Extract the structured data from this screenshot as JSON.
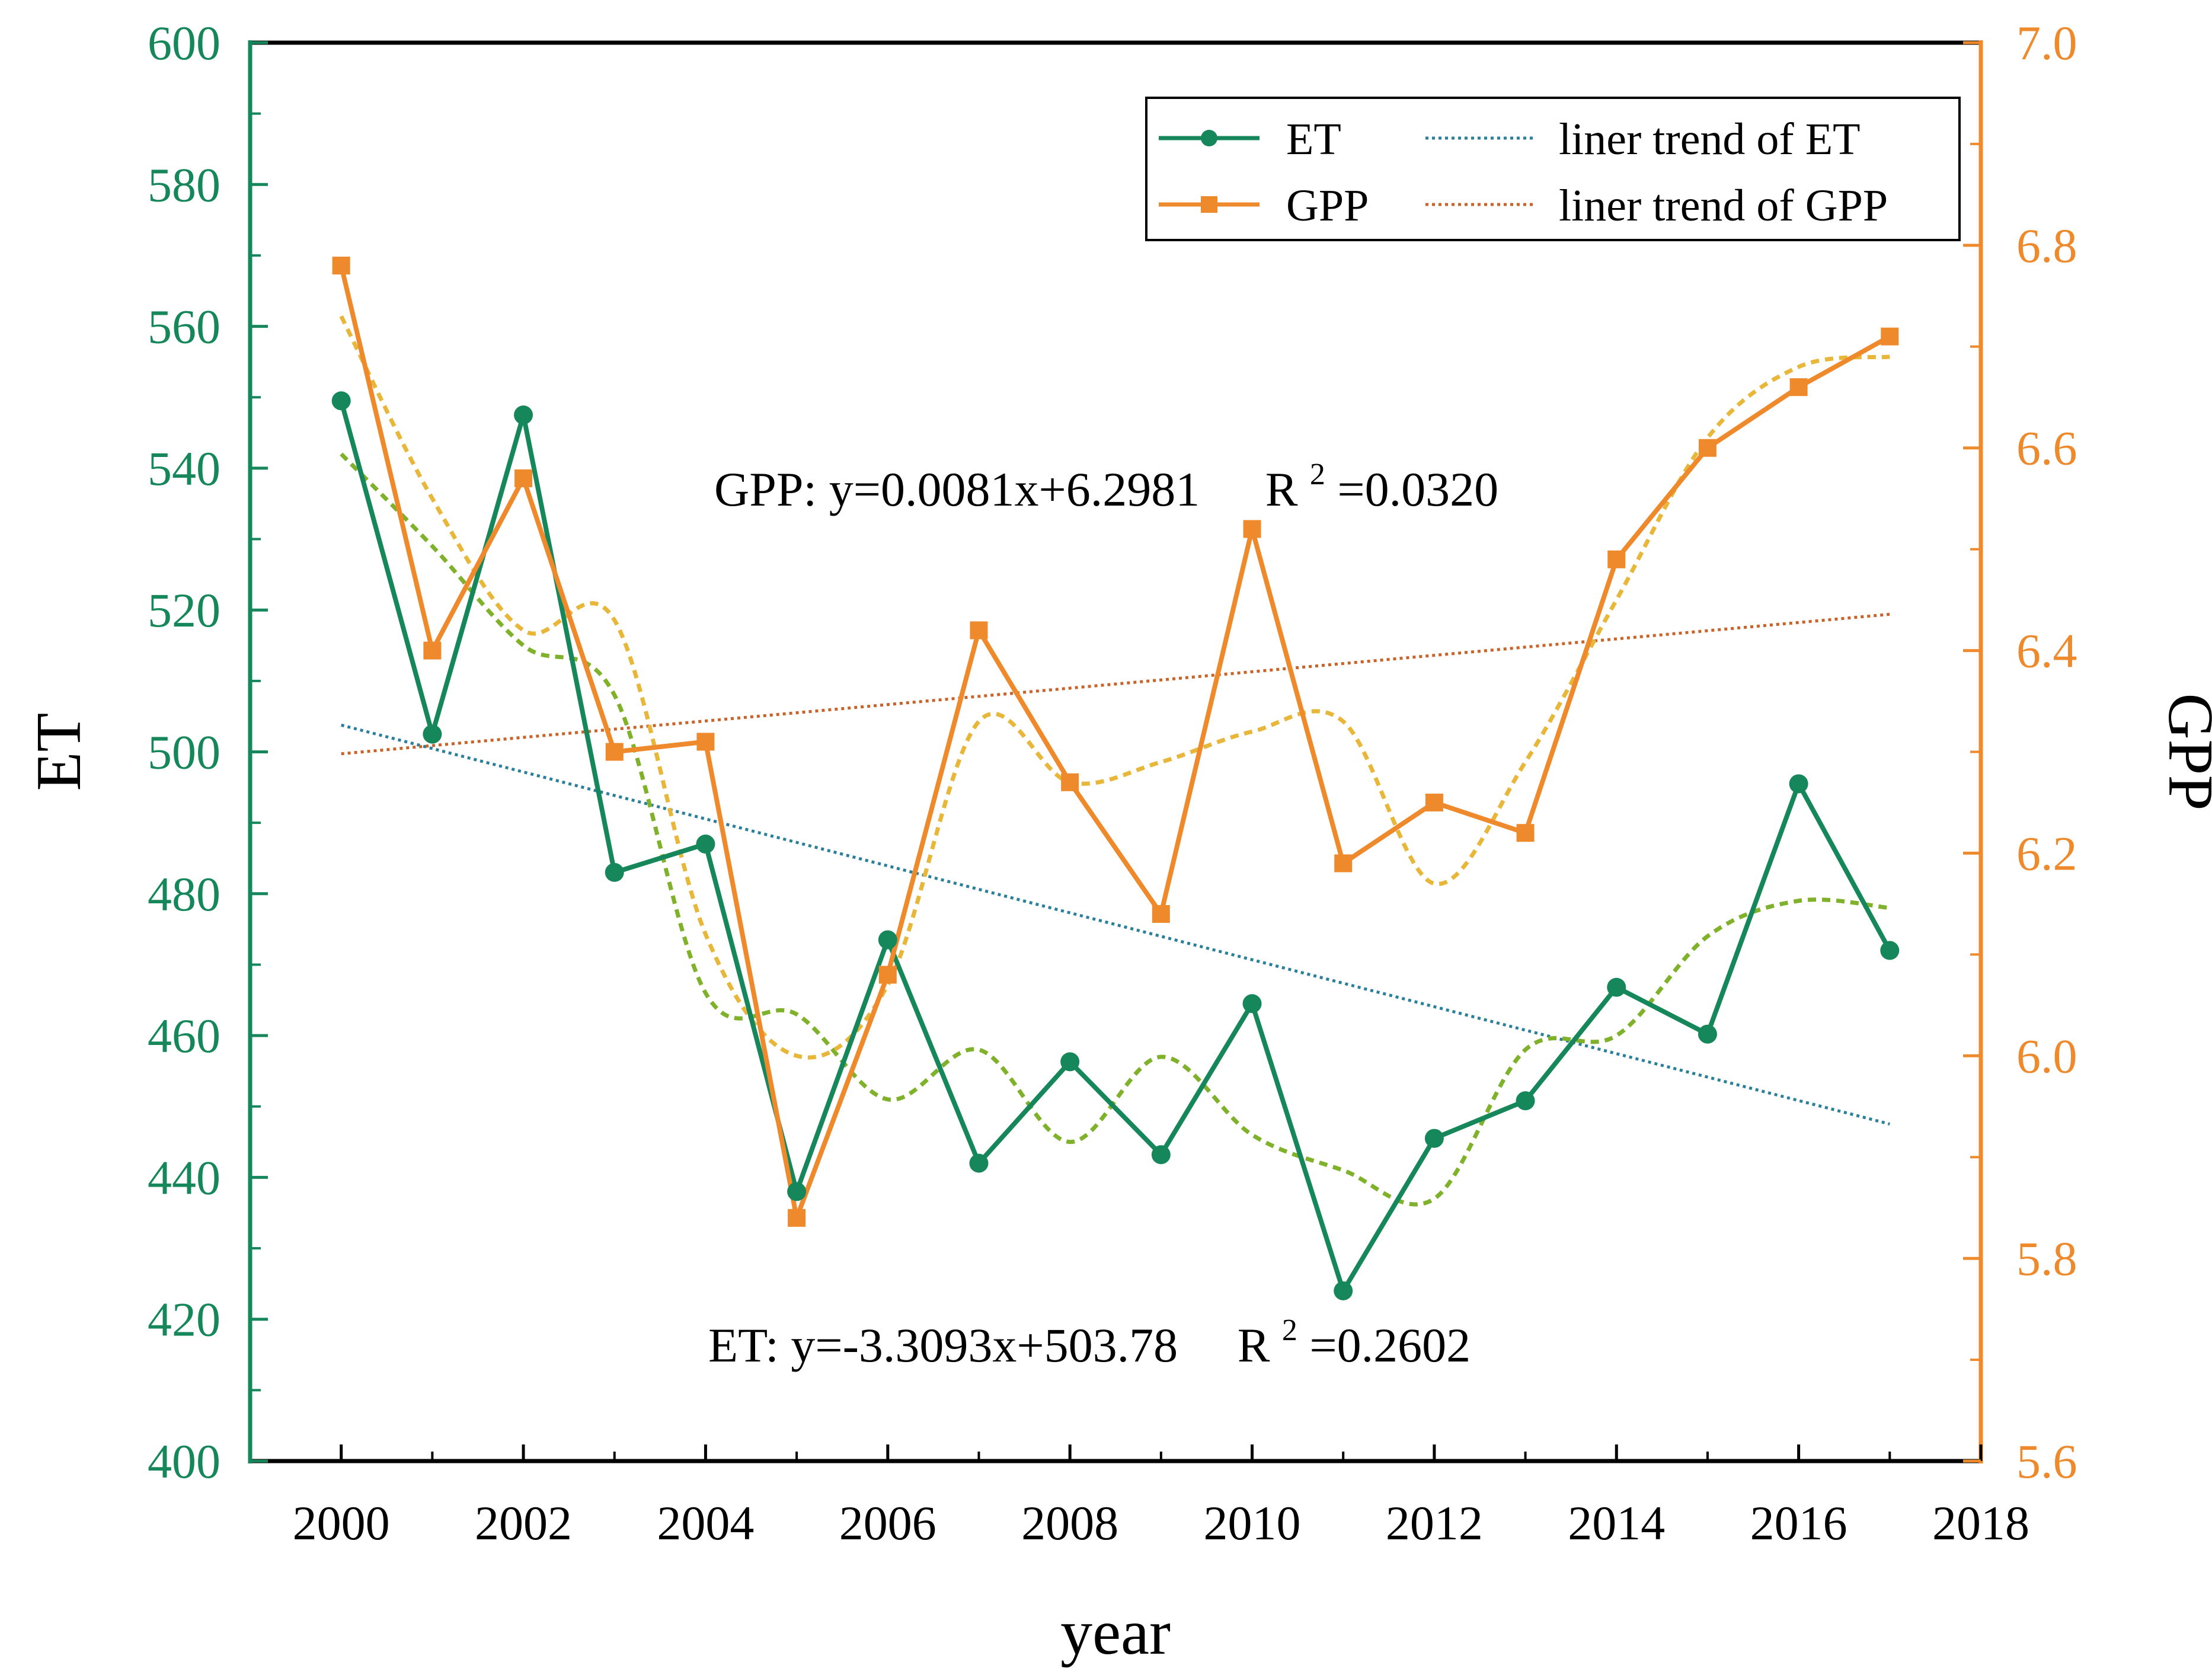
{
  "chart_data": {
    "type": "line",
    "title": "",
    "xlabel": "year",
    "ylabel_left": "ET",
    "ylabel_right": "GPP",
    "xlim": [
      1999,
      2018
    ],
    "ylim_left": [
      400,
      600
    ],
    "ylim_right": [
      5.6,
      7.0
    ],
    "x_ticks": [
      "2000",
      "2002",
      "2004",
      "2006",
      "2008",
      "2010",
      "2012",
      "2014",
      "2016",
      "2018"
    ],
    "y_left_ticks": [
      "400",
      "420",
      "440",
      "460",
      "480",
      "500",
      "520",
      "540",
      "560",
      "580",
      "600"
    ],
    "y_right_ticks": [
      "5.6",
      "5.8",
      "6.0",
      "6.2",
      "6.4",
      "6.6",
      "6.8",
      "7.0"
    ],
    "grid": false,
    "legend_position": "top-right",
    "colors": {
      "et": "#16875a",
      "gpp": "#ee8a2c",
      "et_trend": "#2a7f9a",
      "gpp_trend": "#c8642a",
      "et_smooth": "#7fb12a",
      "gpp_smooth": "#e8b73a",
      "axis": "#000000"
    },
    "x": [
      2000,
      2001,
      2002,
      2003,
      2004,
      2005,
      2006,
      2007,
      2008,
      2009,
      2010,
      2011,
      2012,
      2013,
      2014,
      2015,
      2016,
      2017
    ],
    "series": [
      {
        "name": "ET",
        "axis": "left",
        "marker": "circle",
        "values": [
          549.5,
          502.5,
          547.5,
          483.0,
          487.0,
          438.0,
          473.5,
          442.0,
          456.3,
          443.2,
          464.5,
          424.0,
          445.5,
          450.8,
          466.8,
          460.2,
          495.5,
          472.0
        ]
      },
      {
        "name": "GPP",
        "axis": "right",
        "marker": "square",
        "values": [
          6.78,
          6.4,
          6.57,
          6.3,
          6.31,
          5.84,
          6.08,
          6.42,
          6.27,
          6.14,
          6.52,
          6.19,
          6.25,
          6.22,
          6.49,
          6.6,
          6.66,
          6.71
        ]
      },
      {
        "name": "ET smoothed",
        "axis": "left",
        "style": "dotted",
        "values": [
          542,
          529,
          515,
          508,
          466,
          463,
          451,
          458,
          445,
          457,
          446,
          441,
          437,
          458,
          460,
          474,
          479,
          478
        ]
      },
      {
        "name": "GPP smoothed",
        "axis": "right",
        "style": "dotted",
        "values": [
          6.73,
          6.55,
          6.42,
          6.43,
          6.12,
          6.0,
          6.07,
          6.33,
          6.27,
          6.29,
          6.32,
          6.33,
          6.17,
          6.29,
          6.45,
          6.61,
          6.68,
          6.69
        ]
      }
    ],
    "trend_lines": [
      {
        "name": "liner trend of ET",
        "axis": "left",
        "slope": -3.3093,
        "intercept": 503.78,
        "x0": 2000,
        "x_start": 2000,
        "x_end": 2017
      },
      {
        "name": "liner trend of GPP",
        "axis": "right",
        "slope": 0.0081,
        "intercept": 6.2981,
        "x0": 2000,
        "x_start": 2000,
        "x_end": 2017
      }
    ],
    "annotations": {
      "gpp_equation": "GPP: y=0.0081x+6.2981",
      "gpp_r2_prefix": "R",
      "gpp_r2_sup": "2",
      "gpp_r2_value": "=0.0320",
      "et_equation": "ET: y=-3.3093x+503.78",
      "et_r2_prefix": "R",
      "et_r2_sup": "2",
      "et_r2_value": "=0.2602"
    },
    "legend": [
      {
        "label": "ET",
        "kind": "line-circle",
        "series": "et"
      },
      {
        "label": "GPP",
        "kind": "line-square",
        "series": "gpp"
      },
      {
        "label": "liner trend of ET",
        "kind": "dotted",
        "series": "et_trend"
      },
      {
        "label": "liner trend of GPP",
        "kind": "dotted",
        "series": "gpp_trend"
      }
    ]
  }
}
